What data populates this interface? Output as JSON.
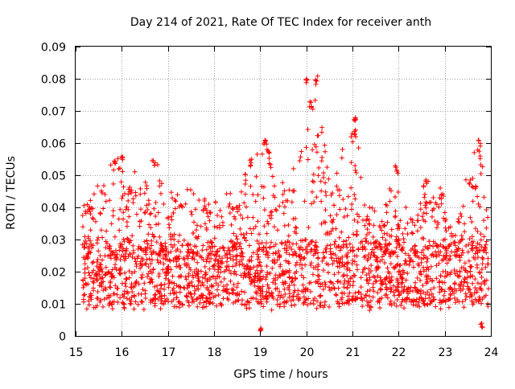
{
  "chart_data": {
    "type": "scatter",
    "title": "Day 214 of 2021, Rate Of TEC Index for receiver anth",
    "xlabel": "GPS time / hours",
    "ylabel": "ROTI / TECUs",
    "xlim": [
      15,
      24
    ],
    "ylim": [
      0,
      0.09
    ],
    "x_ticks": [
      "15",
      "16",
      "17",
      "18",
      "19",
      "20",
      "21",
      "22",
      "23",
      "24"
    ],
    "y_ticks": [
      "0",
      "0.01",
      "0.02",
      "0.03",
      "0.04",
      "0.05",
      "0.06",
      "0.07",
      "0.08",
      "0.09"
    ],
    "grid": true,
    "marker": "+",
    "marker_color": "#ff0000",
    "x_data_range": [
      15.15,
      23.95
    ],
    "typical_band": [
      0.008,
      0.03
    ],
    "envelope": [
      {
        "x": 15.2,
        "y_max": 0.042
      },
      {
        "x": 15.5,
        "y_max": 0.05
      },
      {
        "x": 15.75,
        "y_max": 0.055
      },
      {
        "x": 16.0,
        "y_max": 0.056
      },
      {
        "x": 16.35,
        "y_max": 0.052
      },
      {
        "x": 16.7,
        "y_max": 0.055
      },
      {
        "x": 17.0,
        "y_max": 0.05
      },
      {
        "x": 17.3,
        "y_max": 0.047
      },
      {
        "x": 17.7,
        "y_max": 0.045
      },
      {
        "x": 18.2,
        "y_max": 0.044
      },
      {
        "x": 18.5,
        "y_max": 0.045
      },
      {
        "x": 18.8,
        "y_max": 0.055
      },
      {
        "x": 19.1,
        "y_max": 0.061
      },
      {
        "x": 19.5,
        "y_max": 0.048
      },
      {
        "x": 19.85,
        "y_max": 0.055
      },
      {
        "x": 20.05,
        "y_max": 0.081
      },
      {
        "x": 20.25,
        "y_max": 0.08
      },
      {
        "x": 20.5,
        "y_max": 0.047
      },
      {
        "x": 20.8,
        "y_max": 0.06
      },
      {
        "x": 21.05,
        "y_max": 0.069
      },
      {
        "x": 21.3,
        "y_max": 0.042
      },
      {
        "x": 21.65,
        "y_max": 0.038
      },
      {
        "x": 21.95,
        "y_max": 0.053
      },
      {
        "x": 22.2,
        "y_max": 0.038
      },
      {
        "x": 22.6,
        "y_max": 0.049
      },
      {
        "x": 22.9,
        "y_max": 0.047
      },
      {
        "x": 23.2,
        "y_max": 0.035
      },
      {
        "x": 23.55,
        "y_max": 0.056
      },
      {
        "x": 23.75,
        "y_max": 0.061
      },
      {
        "x": 23.95,
        "y_max": 0.04
      }
    ],
    "peaks": [
      {
        "x": 15.85,
        "y": 0.055
      },
      {
        "x": 16.0,
        "y": 0.056
      },
      {
        "x": 16.7,
        "y": 0.055
      },
      {
        "x": 19.1,
        "y": 0.061
      },
      {
        "x": 20.02,
        "y": 0.0805
      },
      {
        "x": 20.22,
        "y": 0.081
      },
      {
        "x": 20.1,
        "y": 0.073
      },
      {
        "x": 21.05,
        "y": 0.069
      },
      {
        "x": 21.05,
        "y": 0.0645
      },
      {
        "x": 23.75,
        "y": 0.061
      },
      {
        "x": 18.8,
        "y": 0.055
      },
      {
        "x": 21.95,
        "y": 0.053
      },
      {
        "x": 19.0,
        "y": 0.0035
      },
      {
        "x": 23.8,
        "y": 0.0045
      }
    ]
  }
}
